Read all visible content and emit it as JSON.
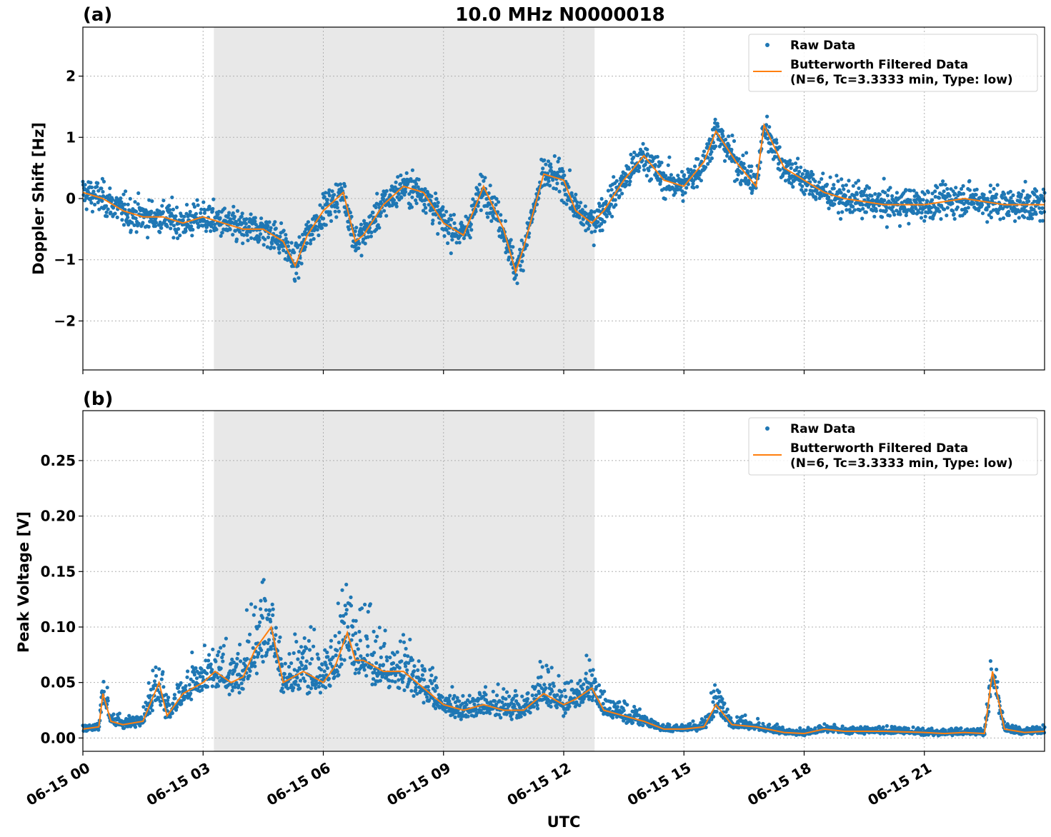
{
  "figure": {
    "title": "10.0 MHz N0000018",
    "xlabel": "UTC",
    "x_tick_labels": [
      "06-15 00",
      "06-15 03",
      "06-15 06",
      "06-15 09",
      "06-15 12",
      "06-15 15",
      "06-15 18",
      "06-15 21"
    ],
    "colors": {
      "raw": "#1f77b4",
      "filtered": "#ff7f0e",
      "shade": "#e8e8e8",
      "grid": "#b0b0b0"
    }
  },
  "chart_data": [
    {
      "type": "scatter",
      "panel_label": "(a)",
      "ylabel": "Doppler Shift [Hz]",
      "xlim_hours": [
        0,
        24
      ],
      "ylim": [
        -2.8,
        2.8
      ],
      "y_ticks": [
        -2,
        -1,
        0,
        1,
        2
      ],
      "y_tick_labels": [
        "−2",
        "−1",
        "0",
        "1",
        "2"
      ],
      "grid": true,
      "legend_placement": "top-right",
      "shaded_interval_hours": [
        3.27,
        12.77
      ],
      "legend": [
        {
          "label": "Raw Data",
          "kind": "marker"
        },
        {
          "label": "Butterworth Filtered Data\n(N=6, Tc=3.3333 min, Type: low)",
          "kind": "line"
        }
      ],
      "series": [
        {
          "name": "Butterworth Filtered Data\n(N=6, Tc=3.3333 min, Type: low)",
          "x_hours": [
            0,
            0.5,
            1,
            1.5,
            2,
            2.5,
            3,
            3.5,
            4,
            4.5,
            5,
            5.3,
            5.6,
            6,
            6.5,
            6.8,
            7,
            7.5,
            8,
            8.5,
            9,
            9.5,
            10,
            10.5,
            10.8,
            11,
            11.5,
            12,
            12.3,
            12.7,
            13,
            13.5,
            14,
            14.5,
            15,
            15.5,
            15.8,
            16.3,
            16.8,
            17,
            17.5,
            18,
            18.5,
            19,
            20,
            21,
            22,
            23,
            24
          ],
          "y": [
            0.1,
            0,
            -0.2,
            -0.3,
            -0.3,
            -0.4,
            -0.3,
            -0.4,
            -0.5,
            -0.5,
            -0.7,
            -1.1,
            -0.6,
            -0.2,
            0.1,
            -0.7,
            -0.6,
            -0.1,
            0.2,
            0.1,
            -0.4,
            -0.6,
            0.2,
            -0.5,
            -1.2,
            -0.8,
            0.4,
            0.3,
            -0.2,
            -0.4,
            -0.2,
            0.3,
            0.7,
            0.3,
            0.2,
            0.6,
            1.1,
            0.6,
            0.2,
            1.2,
            0.5,
            0.3,
            0.1,
            0,
            -0.1,
            -0.1,
            0,
            -0.1,
            -0.1
          ]
        }
      ]
    },
    {
      "type": "scatter",
      "panel_label": "(b)",
      "ylabel": "Peak Voltage [V]",
      "xlim_hours": [
        0,
        24
      ],
      "ylim": [
        -0.012,
        0.295
      ],
      "y_ticks": [
        0,
        0.05,
        0.1,
        0.15,
        0.2,
        0.25
      ],
      "y_tick_labels": [
        "0.00",
        "0.05",
        "0.10",
        "0.15",
        "0.20",
        "0.25"
      ],
      "grid": true,
      "legend_placement": "top-right",
      "shaded_interval_hours": [
        3.27,
        12.77
      ],
      "legend": [
        {
          "label": "Raw Data",
          "kind": "marker"
        },
        {
          "label": "Butterworth Filtered Data\n(N=6, Tc=3.3333 min, Type: low)",
          "kind": "line"
        }
      ],
      "series": [
        {
          "name": "Butterworth Filtered Data\n(N=6, Tc=3.3333 min, Type: low)",
          "x_hours": [
            0,
            0.4,
            0.5,
            0.7,
            1,
            1.5,
            1.9,
            2.1,
            2.5,
            3,
            3.3,
            3.7,
            4,
            4.3,
            4.7,
            5,
            5.5,
            6,
            6.3,
            6.6,
            6.8,
            7,
            7.5,
            8,
            8.5,
            9,
            9.5,
            10,
            10.5,
            11,
            11.5,
            12,
            12.3,
            12.7,
            13,
            13.5,
            14,
            14.5,
            15,
            15.5,
            15.8,
            16.2,
            16.8,
            17.5,
            18,
            18.5,
            19,
            20,
            21,
            21.5,
            22,
            22.5,
            22.7,
            23,
            23.5,
            24
          ],
          "y": [
            0.008,
            0.01,
            0.04,
            0.015,
            0.012,
            0.015,
            0.05,
            0.02,
            0.04,
            0.05,
            0.06,
            0.05,
            0.055,
            0.08,
            0.1,
            0.05,
            0.06,
            0.05,
            0.065,
            0.095,
            0.07,
            0.07,
            0.06,
            0.06,
            0.045,
            0.03,
            0.025,
            0.03,
            0.025,
            0.025,
            0.04,
            0.03,
            0.035,
            0.045,
            0.025,
            0.02,
            0.015,
            0.008,
            0.008,
            0.01,
            0.03,
            0.012,
            0.01,
            0.005,
            0.004,
            0.008,
            0.006,
            0.006,
            0.005,
            0.004,
            0.005,
            0.004,
            0.06,
            0.008,
            0.005,
            0.006
          ]
        }
      ]
    }
  ]
}
